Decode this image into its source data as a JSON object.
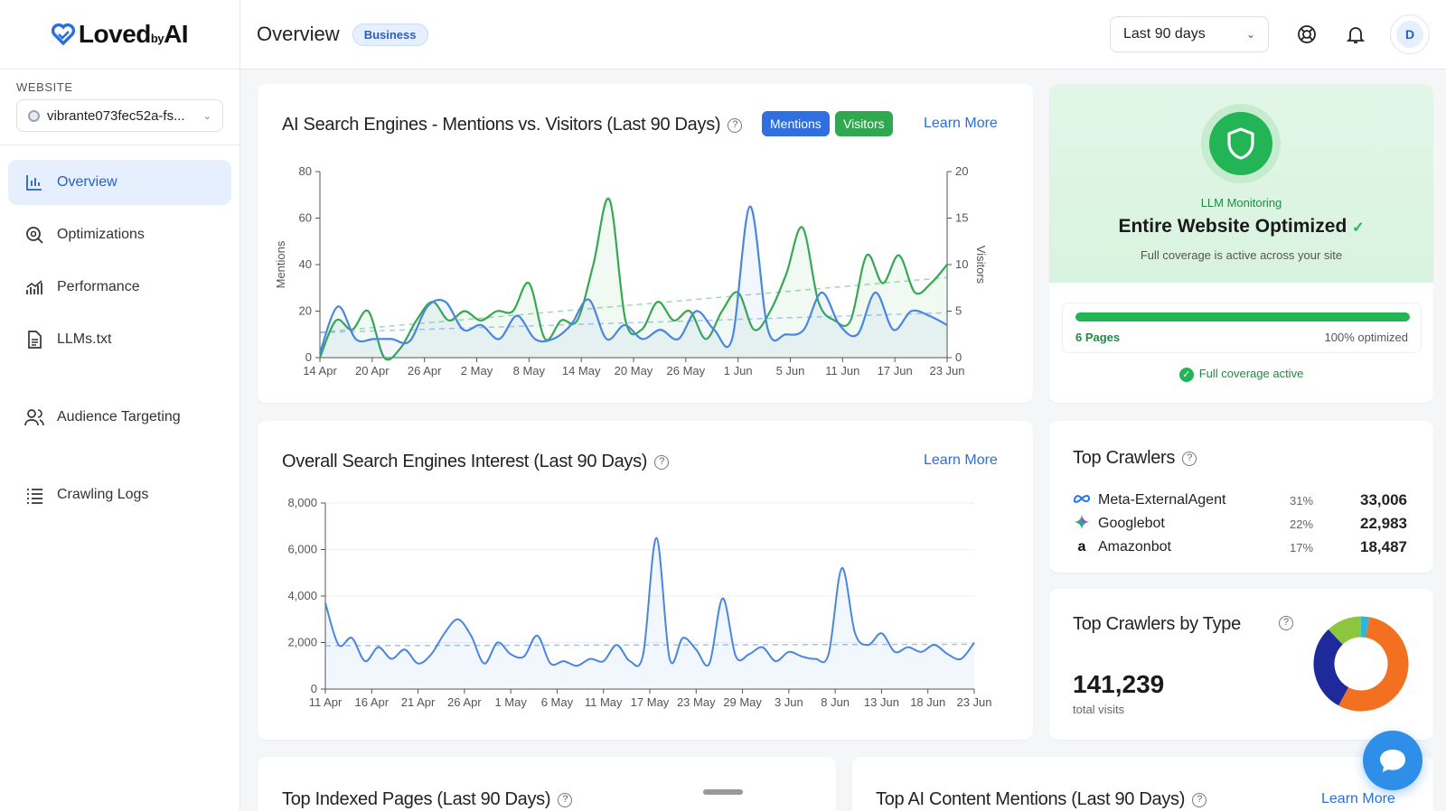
{
  "brand": {
    "name_part1": "Loved",
    "name_part2": "by",
    "name_part3": "AI"
  },
  "sidebar": {
    "website_label": "WEBSITE",
    "website_value": "vibrante073fec52a-fs...",
    "items": [
      {
        "label": "Overview",
        "icon": "bar-chart-icon",
        "active": true
      },
      {
        "label": "Optimizations",
        "icon": "magnify-icon"
      },
      {
        "label": "Performance",
        "icon": "trend-icon"
      },
      {
        "label": "LLMs.txt",
        "icon": "document-icon"
      },
      {
        "label": "Audience Targeting",
        "icon": "users-icon"
      },
      {
        "label": "Crawling Logs",
        "icon": "list-icon"
      }
    ]
  },
  "header": {
    "title": "Overview",
    "plan_badge": "Business",
    "date_range": "Last 90 days",
    "avatar_initial": "D"
  },
  "ai_card": {
    "title": "AI Search Engines - Mentions vs. Visitors (Last 90 Days)",
    "chip_mentions": "Mentions",
    "chip_visitors": "Visitors",
    "learn_more": "Learn More",
    "colors": {
      "mentions": "#2f6fe0",
      "visitors": "#2fa84f"
    }
  },
  "interest_card": {
    "title": "Overall Search Engines Interest (Last 90 Days)",
    "learn_more": "Learn More"
  },
  "llm_card": {
    "label": "LLM Monitoring",
    "title": "Entire Website Optimized",
    "subtitle": "Full coverage is active across your site",
    "pages": "6 Pages",
    "percent_text": "100% optimized",
    "progress": 1.0,
    "coverage": "Full coverage active"
  },
  "crawlers_card": {
    "title": "Top Crawlers",
    "rows": [
      {
        "name": "Meta-ExternalAgent",
        "pct": "31%",
        "count": "33,006",
        "icon": "meta-icon"
      },
      {
        "name": "Googlebot",
        "pct": "22%",
        "count": "22,983",
        "icon": "google-icon"
      },
      {
        "name": "Amazonbot",
        "pct": "17%",
        "count": "18,487",
        "icon": "amazon-icon"
      }
    ]
  },
  "crawler_type_card": {
    "title": "Top Crawlers by Type",
    "total": "141,239",
    "total_label": "total visits"
  },
  "bottom": {
    "indexed_title": "Top Indexed Pages (Last 90 Days)",
    "mentions_title": "Top AI Content Mentions (Last 90 Days)",
    "learn_more": "Learn More"
  },
  "chart_data": [
    {
      "type": "line",
      "title": "AI Search Engines - Mentions vs. Visitors (Last 90 Days)",
      "ylabel": "Mentions",
      "y2label": "Visitors",
      "ylim": [
        0,
        80
      ],
      "y2lim": [
        0,
        20
      ],
      "yticks": [
        "0",
        "20",
        "40",
        "60",
        "80"
      ],
      "y2ticks": [
        "0",
        "5",
        "10",
        "15",
        "20"
      ],
      "xticks": [
        "14 Apr",
        "20 Apr",
        "26 Apr",
        "2 May",
        "8 May",
        "14 May",
        "20 May",
        "26 May",
        "1 Jun",
        "5 Jun",
        "11 Jun",
        "17 Jun",
        "23 Jun"
      ],
      "series": [
        {
          "name": "Mentions",
          "axis": "left",
          "color": "#4a86e0",
          "values": [
            2,
            22,
            8,
            8,
            8,
            7,
            22,
            24,
            12,
            14,
            8,
            18,
            8,
            8,
            14,
            25,
            8,
            14,
            8,
            12,
            8,
            20,
            12,
            8,
            65,
            12,
            10,
            12,
            28,
            14,
            10,
            28,
            12,
            20,
            18,
            14
          ]
        },
        {
          "name": "Visitors",
          "axis": "right",
          "color": "#36a852",
          "values": [
            0,
            4,
            3,
            5,
            0,
            1,
            4,
            6,
            4,
            5,
            4,
            5,
            5,
            8,
            2,
            4,
            4,
            10,
            17,
            4,
            3,
            6,
            4,
            5,
            2,
            5,
            7,
            3,
            5,
            9,
            14,
            6,
            4,
            4,
            11,
            8,
            11,
            7,
            8,
            10
          ]
        }
      ]
    },
    {
      "type": "line",
      "title": "Overall Search Engines Interest (Last 90 Days)",
      "ylim": [
        0,
        8000
      ],
      "yticks": [
        "0",
        "2,000",
        "4,000",
        "6,000",
        "8,000"
      ],
      "xticks": [
        "11 Apr",
        "16 Apr",
        "21 Apr",
        "26 Apr",
        "1 May",
        "6 May",
        "11 May",
        "17 May",
        "23 May",
        "29 May",
        "3 Jun",
        "8 Jun",
        "13 Jun",
        "18 Jun",
        "23 Jun"
      ],
      "series": [
        {
          "name": "Interest",
          "color": "#4a86e0",
          "values": [
            3700,
            1900,
            2200,
            1200,
            1800,
            1300,
            1700,
            1100,
            1500,
            2400,
            3000,
            2300,
            1100,
            2000,
            1500,
            1400,
            2300,
            1100,
            1200,
            1000,
            1300,
            1200,
            1900,
            1200,
            1500,
            6500,
            1300,
            2200,
            1700,
            1100,
            3900,
            1400,
            1500,
            1800,
            1200,
            1600,
            1400,
            1300,
            1500,
            5200,
            2400,
            1900,
            2400,
            1600,
            1800,
            1600,
            1900,
            1500,
            1300,
            2000
          ]
        }
      ]
    },
    {
      "type": "pie",
      "title": "Top Crawlers by Type",
      "values": [
        55,
        30,
        12,
        3
      ],
      "colors": [
        "#f37021",
        "#1f2a9a",
        "#8cc63f",
        "#2bb7d6"
      ]
    }
  ]
}
